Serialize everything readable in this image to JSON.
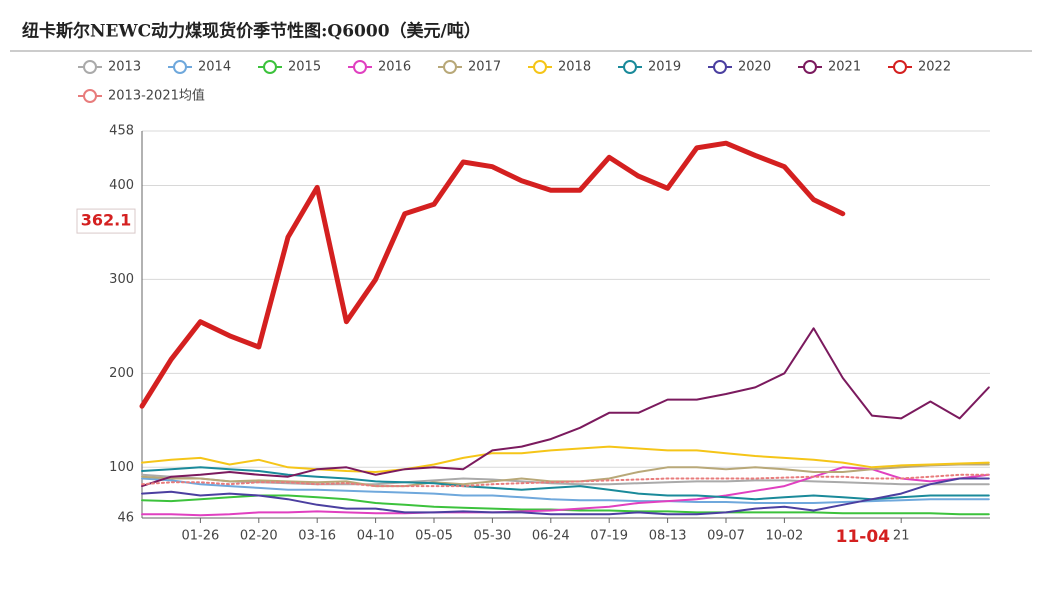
{
  "chart_data": {
    "type": "line",
    "title": "纽卡斯尔NEWC动力煤现货价季节性图:Q6000（美元/吨）",
    "categories": [
      null,
      null,
      "01-26",
      null,
      "02-20",
      null,
      "03-16",
      null,
      "04-10",
      null,
      "05-05",
      null,
      "05-30",
      null,
      "06-24",
      null,
      "07-19",
      null,
      "08-13",
      null,
      "09-07",
      null,
      "10-02",
      null,
      null,
      null,
      "21",
      null,
      null,
      null
    ],
    "axis_pointer": {
      "x": "11-04",
      "y": 362.1
    },
    "ylim": [
      46,
      458
    ],
    "yticks": [
      46,
      100,
      200,
      300,
      400,
      458
    ],
    "grid": true,
    "series": [
      {
        "name": "2013",
        "color": "#aaaaaa",
        "values": [
          92,
          90,
          88,
          85,
          84,
          83,
          82,
          82,
          82,
          84,
          86,
          88,
          87,
          85,
          83,
          82,
          82,
          83,
          84,
          85,
          85,
          86,
          86,
          85,
          84,
          83,
          82,
          82,
          82,
          82
        ]
      },
      {
        "name": "2014",
        "color": "#6fa8dc",
        "values": [
          88,
          86,
          82,
          80,
          78,
          76,
          76,
          75,
          74,
          73,
          72,
          70,
          70,
          68,
          66,
          65,
          65,
          64,
          64,
          63,
          63,
          62,
          62,
          62,
          63,
          64,
          65,
          66,
          66,
          66
        ]
      },
      {
        "name": "2015",
        "color": "#3cc23c",
        "values": [
          65,
          64,
          66,
          68,
          70,
          70,
          68,
          66,
          62,
          60,
          58,
          57,
          56,
          55,
          55,
          54,
          54,
          53,
          53,
          52,
          52,
          52,
          52,
          52,
          51,
          51,
          51,
          51,
          50,
          50
        ]
      },
      {
        "name": "2016",
        "color": "#e040c0",
        "values": [
          50,
          50,
          49,
          50,
          52,
          52,
          53,
          52,
          51,
          51,
          52,
          52,
          52,
          53,
          54,
          56,
          58,
          62,
          64,
          66,
          70,
          75,
          80,
          90,
          100,
          98,
          88,
          85,
          88,
          92
        ]
      },
      {
        "name": "2017",
        "color": "#b8a878",
        "values": [
          90,
          88,
          88,
          85,
          86,
          85,
          84,
          85,
          80,
          80,
          84,
          82,
          85,
          88,
          85,
          85,
          88,
          95,
          100,
          100,
          98,
          100,
          98,
          95,
          95,
          98,
          100,
          102,
          103,
          103
        ]
      },
      {
        "name": "2018",
        "color": "#f5c518",
        "values": [
          105,
          108,
          110,
          103,
          108,
          100,
          98,
          96,
          95,
          98,
          103,
          110,
          115,
          115,
          118,
          120,
          122,
          120,
          118,
          118,
          115,
          112,
          110,
          108,
          105,
          100,
          102,
          103,
          104,
          105
        ]
      },
      {
        "name": "2019",
        "color": "#1a8a9a",
        "values": [
          96,
          98,
          100,
          98,
          96,
          92,
          90,
          88,
          85,
          84,
          83,
          80,
          78,
          76,
          78,
          80,
          76,
          72,
          70,
          70,
          68,
          66,
          68,
          70,
          68,
          66,
          68,
          70,
          70,
          70
        ]
      },
      {
        "name": "2020",
        "color": "#4b3fa0",
        "values": [
          72,
          74,
          70,
          72,
          70,
          66,
          60,
          56,
          56,
          52,
          52,
          53,
          52,
          52,
          50,
          50,
          50,
          52,
          50,
          50,
          52,
          56,
          58,
          54,
          60,
          66,
          72,
          82,
          88,
          88
        ]
      },
      {
        "name": "2021",
        "color": "#7b1a5e",
        "values": [
          80,
          90,
          92,
          95,
          92,
          90,
          98,
          100,
          92,
          98,
          100,
          98,
          118,
          122,
          130,
          142,
          158,
          158,
          172,
          172,
          178,
          185,
          200,
          248,
          195,
          155,
          152,
          170,
          152,
          185
        ]
      },
      {
        "name": "2022",
        "color": "#d42020",
        "width": 5,
        "values": [
          165,
          215,
          255,
          240,
          228,
          345,
          398,
          255,
          300,
          370,
          380,
          425,
          420,
          405,
          395,
          395,
          430,
          410,
          397,
          440,
          445,
          432,
          420,
          385,
          370,
          null,
          null,
          null,
          null,
          null
        ]
      },
      {
        "name": "2013-2021均值",
        "color": "#e87c7c",
        "dash": true,
        "values": [
          82,
          84,
          84,
          82,
          84,
          84,
          82,
          83,
          80,
          80,
          80,
          80,
          82,
          83,
          84,
          85,
          86,
          87,
          88,
          88,
          88,
          88,
          89,
          90,
          90,
          88,
          88,
          90,
          92,
          92
        ]
      }
    ]
  }
}
